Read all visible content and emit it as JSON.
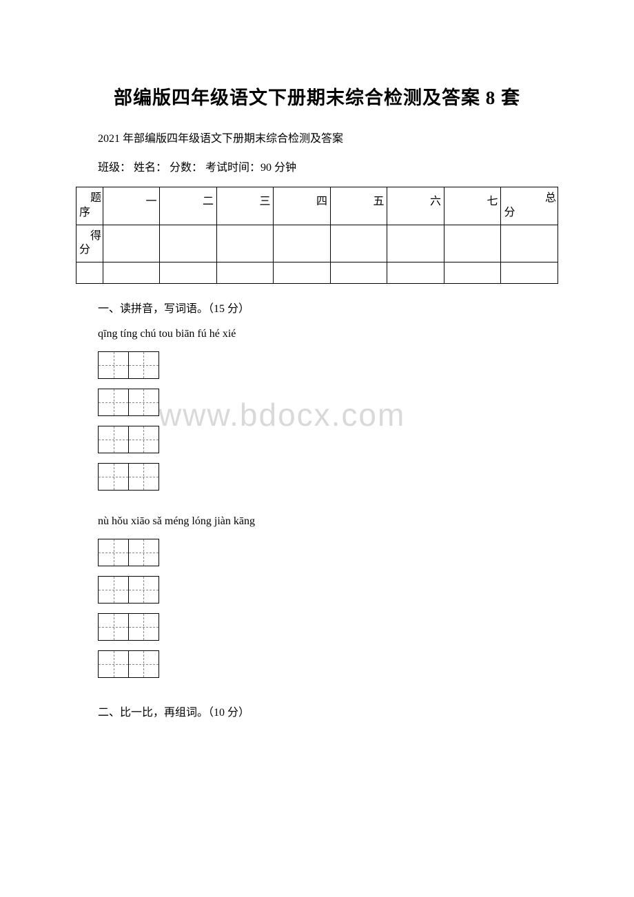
{
  "title": "部编版四年级语文下册期末综合检测及答案 8 套",
  "subtitle": "2021 年部编版四年级语文下册期末综合检测及答案",
  "info_line": "班级：  姓名：  分数：  考试时间：90 分钟",
  "score_table": {
    "row1_label_top": "题",
    "row1_label_bottom": "序",
    "row2_label_top": "得",
    "row2_label_bottom": "分",
    "cols": [
      "一",
      "二",
      "三",
      "四",
      "五",
      "六",
      "七"
    ],
    "last_top": "总",
    "last_bottom": "分"
  },
  "section1": "一、读拼音，写词语。（15 分）",
  "pinyin1": "qīng tíng   chú tou   biān fú   hé xié",
  "pinyin2": "nù  hǒu   xiāo sǎ   méng lóng   jiàn kāng",
  "section2": "二、比一比，再组词。（10 分）",
  "watermark": "www.bdocx.com",
  "box_count_per_row": 2,
  "rows_per_group": 4
}
